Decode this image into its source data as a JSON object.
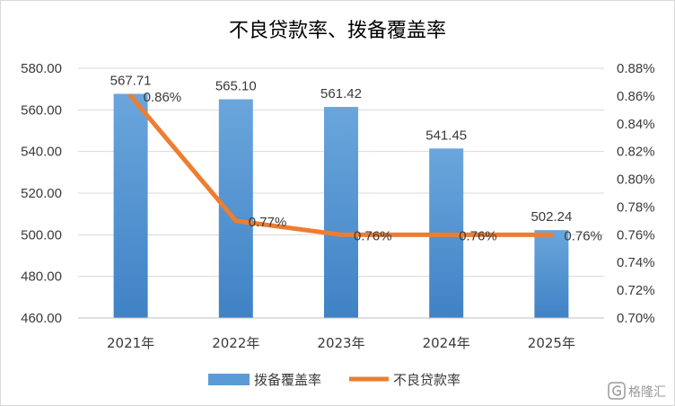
{
  "chart_data": {
    "type": "bar",
    "title": "不良贷款率、拨备覆盖率",
    "categories": [
      "2021年",
      "2022年",
      "2023年",
      "2024年",
      "2025年"
    ],
    "series": [
      {
        "name": "拨备覆盖率",
        "type": "bar",
        "axis": "left",
        "values": [
          567.71,
          565.1,
          561.42,
          541.45,
          502.24
        ],
        "labels": [
          "567.71",
          "565.10",
          "561.42",
          "541.45",
          "502.24"
        ],
        "color": "#5b9bd5"
      },
      {
        "name": "不良贷款率",
        "type": "line",
        "axis": "right",
        "values": [
          0.86,
          0.77,
          0.76,
          0.76,
          0.76
        ],
        "labels": [
          "0.86%",
          "0.77%",
          "0.76%",
          "0.76%",
          "0.76%"
        ],
        "color": "#ed7d31"
      }
    ],
    "left_axis": {
      "ylim": [
        460,
        580
      ],
      "ticks": [
        "460.00",
        "480.00",
        "500.00",
        "520.00",
        "540.00",
        "560.00",
        "580.00"
      ]
    },
    "right_axis": {
      "ylim": [
        0.7,
        0.88
      ],
      "ticks": [
        "0.70%",
        "0.72%",
        "0.74%",
        "0.76%",
        "0.78%",
        "0.80%",
        "0.82%",
        "0.84%",
        "0.86%",
        "0.88%"
      ]
    },
    "grid": true,
    "legend_position": "bottom"
  },
  "watermark": {
    "icon": "g-logo-icon",
    "text": "格隆汇"
  }
}
